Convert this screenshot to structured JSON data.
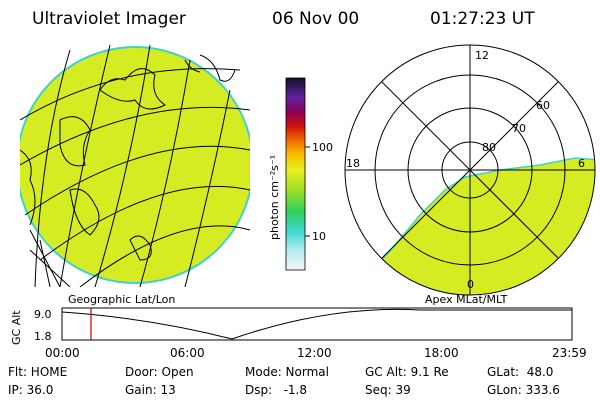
{
  "header": {
    "title": "Ultraviolet Imager",
    "date": "06 Nov 00",
    "time": "01:27:23 UT"
  },
  "colorbar": {
    "label": "photon cm⁻²s⁻¹",
    "ticks": [
      "100",
      "10"
    ]
  },
  "left_panel": {
    "label": "Geographic Lat/Lon"
  },
  "right_panel": {
    "label": "Apex MLat/MLT",
    "mlt_labels": [
      "12",
      "18",
      "6",
      "0"
    ],
    "lat_labels": [
      "80",
      "70",
      "60"
    ]
  },
  "timeline": {
    "ylabel": "GC Alt",
    "yticks": [
      "9.0",
      "1.8"
    ],
    "xticks": [
      "00:00",
      "06:00",
      "12:00",
      "18:00",
      "23:59"
    ]
  },
  "status": {
    "rows": [
      [
        "Flt: HOME",
        "Door: Open",
        "Mode: Normal",
        "GC Alt: 9.1 Re",
        "GLat:  48.0"
      ],
      [
        "IP: 36.0",
        "Gain: 13",
        "Dsp:   -1.8",
        "Seq: 39",
        "GLon: 333.6"
      ]
    ]
  }
}
